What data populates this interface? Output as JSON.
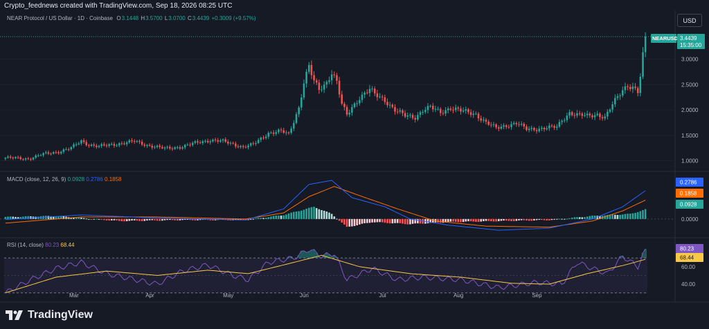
{
  "attribution": "Crypto_feednews created with TradingView.com, Sep 18, 2026 08:25 UTC",
  "currency_button": "USD",
  "legend": {
    "symbol": "NEAR Protocol / US Dollar · 1D · Coinbase",
    "o_label": "O",
    "o": "3.1448",
    "h_label": "H",
    "h": "3.5700",
    "l_label": "L",
    "l": "3.0700",
    "c_label": "C",
    "c": "3.4439",
    "change": "+0.3009 (+9.57%)"
  },
  "price_tag": {
    "ticker": "NEARUSD",
    "price": "3.4439",
    "countdown": "15:35:00"
  },
  "macd_legend": {
    "title": "MACD (close, 12, 26, 9)",
    "hist": "0.0928",
    "macd": "0.2786",
    "signal": "0.1858"
  },
  "rsi_legend": {
    "title": "RSI (14, close)",
    "rsi": "80.23",
    "ma": "68.44"
  },
  "brand": "TradingView",
  "colors": {
    "bg": "#161a25",
    "up": "#26a69a",
    "down": "#ef5350",
    "macd_line": "#2962ff",
    "signal_line": "#ff6d00",
    "rsi_line": "#7e57c2",
    "rsi_ma": "#f9c846"
  },
  "chart_data": {
    "type": "candlestick",
    "symbol": "NEARUSD",
    "interval": "1D",
    "x_labels": [
      "Mar",
      "Apr",
      "May",
      "Jun",
      "Jul",
      "Aug",
      "Sep"
    ],
    "price_axis_ticks": [
      "3.0000",
      "2.5000",
      "2.0000",
      "1.5000",
      "1.0000"
    ],
    "ylim": [
      0.9,
      3.62
    ],
    "close_path": [
      {
        "x": 0,
        "y": 1.06
      },
      {
        "x": 9,
        "y": 1.04
      },
      {
        "x": 15,
        "y": 1.13
      },
      {
        "x": 21,
        "y": 1.18
      },
      {
        "x": 26,
        "y": 1.25
      },
      {
        "x": 30,
        "y": 1.39
      },
      {
        "x": 33,
        "y": 1.32
      },
      {
        "x": 37,
        "y": 1.28
      },
      {
        "x": 45,
        "y": 1.34
      },
      {
        "x": 51,
        "y": 1.38
      },
      {
        "x": 56,
        "y": 1.31
      },
      {
        "x": 63,
        "y": 1.24
      },
      {
        "x": 70,
        "y": 1.28
      },
      {
        "x": 76,
        "y": 1.36
      },
      {
        "x": 81,
        "y": 1.41
      },
      {
        "x": 86,
        "y": 1.38
      },
      {
        "x": 90,
        "y": 1.33
      },
      {
        "x": 94,
        "y": 1.27
      },
      {
        "x": 98,
        "y": 1.32
      },
      {
        "x": 104,
        "y": 1.55
      },
      {
        "x": 109,
        "y": 1.58
      },
      {
        "x": 112,
        "y": 1.52
      },
      {
        "x": 116,
        "y": 2.05
      },
      {
        "x": 118,
        "y": 2.55
      },
      {
        "x": 120,
        "y": 2.85
      },
      {
        "x": 122,
        "y": 2.55
      },
      {
        "x": 124,
        "y": 2.4
      },
      {
        "x": 127,
        "y": 2.55
      },
      {
        "x": 129,
        "y": 2.75
      },
      {
        "x": 131,
        "y": 2.55
      },
      {
        "x": 133,
        "y": 2.1
      },
      {
        "x": 135,
        "y": 1.9
      },
      {
        "x": 137,
        "y": 2.05
      },
      {
        "x": 140,
        "y": 2.25
      },
      {
        "x": 144,
        "y": 2.4
      },
      {
        "x": 146,
        "y": 2.3
      },
      {
        "x": 150,
        "y": 2.2
      },
      {
        "x": 154,
        "y": 2.0
      },
      {
        "x": 158,
        "y": 1.88
      },
      {
        "x": 162,
        "y": 1.86
      },
      {
        "x": 165,
        "y": 2.0
      },
      {
        "x": 168,
        "y": 2.05
      },
      {
        "x": 172,
        "y": 1.95
      },
      {
        "x": 176,
        "y": 2.05
      },
      {
        "x": 180,
        "y": 1.98
      },
      {
        "x": 186,
        "y": 1.92
      },
      {
        "x": 190,
        "y": 1.75
      },
      {
        "x": 194,
        "y": 1.64
      },
      {
        "x": 198,
        "y": 1.7
      },
      {
        "x": 202,
        "y": 1.74
      },
      {
        "x": 206,
        "y": 1.62
      },
      {
        "x": 210,
        "y": 1.63
      },
      {
        "x": 214,
        "y": 1.65
      },
      {
        "x": 218,
        "y": 1.66
      },
      {
        "x": 220,
        "y": 1.8
      },
      {
        "x": 223,
        "y": 1.95
      },
      {
        "x": 226,
        "y": 1.9
      },
      {
        "x": 230,
        "y": 1.88
      },
      {
        "x": 234,
        "y": 1.92
      },
      {
        "x": 237,
        "y": 1.85
      },
      {
        "x": 240,
        "y": 2.1
      },
      {
        "x": 242,
        "y": 2.25
      },
      {
        "x": 244,
        "y": 2.4
      },
      {
        "x": 246,
        "y": 2.5
      },
      {
        "x": 248,
        "y": 2.45
      },
      {
        "x": 250,
        "y": 2.35
      },
      {
        "x": 251,
        "y": 2.65
      },
      {
        "x": 252,
        "y": 3.05
      },
      {
        "x": 253,
        "y": 3.44
      }
    ],
    "macd": {
      "zero_label": "0.0000",
      "ylim": [
        -0.13,
        0.4
      ],
      "macd_path": [
        {
          "x": 0,
          "y": -0.005
        },
        {
          "x": 30,
          "y": 0.04
        },
        {
          "x": 60,
          "y": 0.01
        },
        {
          "x": 95,
          "y": -0.01
        },
        {
          "x": 110,
          "y": 0.1
        },
        {
          "x": 120,
          "y": 0.34
        },
        {
          "x": 129,
          "y": 0.38
        },
        {
          "x": 137,
          "y": 0.21
        },
        {
          "x": 150,
          "y": 0.12
        },
        {
          "x": 160,
          "y": 0.0
        },
        {
          "x": 175,
          "y": -0.06
        },
        {
          "x": 195,
          "y": -0.11
        },
        {
          "x": 215,
          "y": -0.09
        },
        {
          "x": 232,
          "y": 0.0
        },
        {
          "x": 244,
          "y": 0.12
        },
        {
          "x": 253,
          "y": 0.2786
        }
      ],
      "signal_path": [
        {
          "x": 0,
          "y": -0.04
        },
        {
          "x": 30,
          "y": 0.02
        },
        {
          "x": 60,
          "y": 0.02
        },
        {
          "x": 95,
          "y": 0.0
        },
        {
          "x": 110,
          "y": 0.06
        },
        {
          "x": 120,
          "y": 0.22
        },
        {
          "x": 130,
          "y": 0.32
        },
        {
          "x": 140,
          "y": 0.23
        },
        {
          "x": 155,
          "y": 0.1
        },
        {
          "x": 170,
          "y": -0.02
        },
        {
          "x": 190,
          "y": -0.07
        },
        {
          "x": 215,
          "y": -0.08
        },
        {
          "x": 232,
          "y": -0.02
        },
        {
          "x": 244,
          "y": 0.08
        },
        {
          "x": 253,
          "y": 0.1858
        }
      ],
      "histogram_samples": [
        {
          "x": 0,
          "y": 0.02
        },
        {
          "x": 20,
          "y": 0.03
        },
        {
          "x": 45,
          "y": -0.02
        },
        {
          "x": 70,
          "y": -0.01
        },
        {
          "x": 95,
          "y": -0.01
        },
        {
          "x": 110,
          "y": 0.04
        },
        {
          "x": 122,
          "y": 0.12
        },
        {
          "x": 129,
          "y": 0.05
        },
        {
          "x": 135,
          "y": -0.08
        },
        {
          "x": 145,
          "y": -0.03
        },
        {
          "x": 160,
          "y": -0.05
        },
        {
          "x": 175,
          "y": -0.03
        },
        {
          "x": 195,
          "y": -0.02
        },
        {
          "x": 215,
          "y": -0.01
        },
        {
          "x": 232,
          "y": 0.03
        },
        {
          "x": 247,
          "y": 0.05
        },
        {
          "x": 253,
          "y": 0.0928
        }
      ]
    },
    "rsi": {
      "ticks": [
        "60.00",
        "40.00"
      ],
      "band": [
        30,
        70
      ],
      "ylim": [
        25,
        90
      ],
      "rsi_path": [
        {
          "x": 0,
          "y": 30
        },
        {
          "x": 10,
          "y": 45
        },
        {
          "x": 20,
          "y": 58
        },
        {
          "x": 30,
          "y": 65
        },
        {
          "x": 40,
          "y": 52
        },
        {
          "x": 50,
          "y": 46
        },
        {
          "x": 60,
          "y": 40
        },
        {
          "x": 70,
          "y": 55
        },
        {
          "x": 80,
          "y": 62
        },
        {
          "x": 90,
          "y": 50
        },
        {
          "x": 96,
          "y": 45
        },
        {
          "x": 104,
          "y": 65
        },
        {
          "x": 114,
          "y": 70
        },
        {
          "x": 120,
          "y": 80
        },
        {
          "x": 125,
          "y": 72
        },
        {
          "x": 130,
          "y": 75
        },
        {
          "x": 135,
          "y": 45
        },
        {
          "x": 145,
          "y": 58
        },
        {
          "x": 155,
          "y": 45
        },
        {
          "x": 165,
          "y": 48
        },
        {
          "x": 180,
          "y": 45
        },
        {
          "x": 195,
          "y": 36
        },
        {
          "x": 210,
          "y": 42
        },
        {
          "x": 220,
          "y": 40
        },
        {
          "x": 226,
          "y": 65
        },
        {
          "x": 232,
          "y": 58
        },
        {
          "x": 238,
          "y": 52
        },
        {
          "x": 244,
          "y": 72
        },
        {
          "x": 250,
          "y": 60
        },
        {
          "x": 253,
          "y": 80.23
        }
      ],
      "ma_path": [
        {
          "x": 0,
          "y": 30
        },
        {
          "x": 20,
          "y": 48
        },
        {
          "x": 40,
          "y": 55
        },
        {
          "x": 60,
          "y": 50
        },
        {
          "x": 80,
          "y": 56
        },
        {
          "x": 96,
          "y": 52
        },
        {
          "x": 110,
          "y": 62
        },
        {
          "x": 125,
          "y": 73
        },
        {
          "x": 140,
          "y": 60
        },
        {
          "x": 160,
          "y": 52
        },
        {
          "x": 180,
          "y": 48
        },
        {
          "x": 200,
          "y": 41
        },
        {
          "x": 215,
          "y": 40
        },
        {
          "x": 230,
          "y": 52
        },
        {
          "x": 245,
          "y": 62
        },
        {
          "x": 253,
          "y": 68.44
        }
      ]
    }
  }
}
